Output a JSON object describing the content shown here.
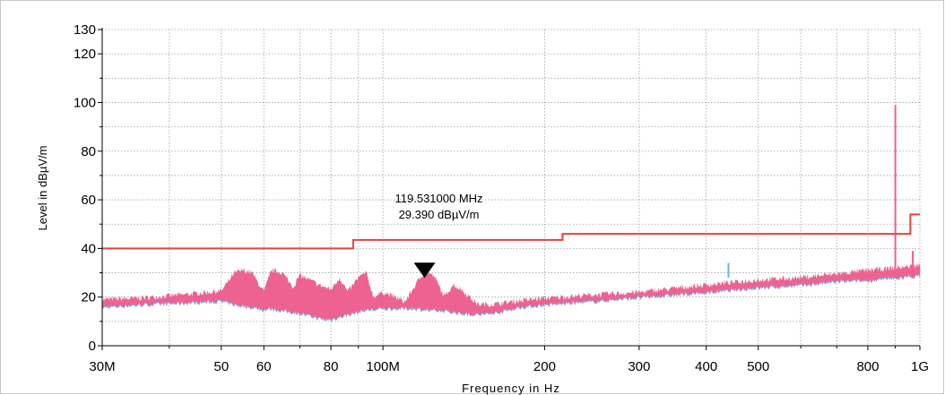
{
  "chart_data": {
    "type": "line",
    "x_scale": "log",
    "xlim": [
      30000000,
      1000000000
    ],
    "ylim": [
      0,
      130
    ],
    "grid": true,
    "xlabel": "Frequency in Hz",
    "ylabel": "Level in dBµV/m",
    "x_ticks": [
      {
        "value": 30000000,
        "label": "30M"
      },
      {
        "value": 50000000,
        "label": "50"
      },
      {
        "value": 60000000,
        "label": "60"
      },
      {
        "value": 80000000,
        "label": "80"
      },
      {
        "value": 100000000,
        "label": "100M"
      },
      {
        "value": 200000000,
        "label": "200"
      },
      {
        "value": 300000000,
        "label": "300"
      },
      {
        "value": 400000000,
        "label": "400"
      },
      {
        "value": 500000000,
        "label": "500"
      },
      {
        "value": 800000000,
        "label": "800"
      },
      {
        "value": 1000000000,
        "label": "1G"
      }
    ],
    "y_ticks": [
      {
        "value": 0,
        "label": "0"
      },
      {
        "value": 20,
        "label": "20"
      },
      {
        "value": 40,
        "label": "40"
      },
      {
        "value": 60,
        "label": "60"
      },
      {
        "value": 80,
        "label": "80"
      },
      {
        "value": 100,
        "label": "100"
      },
      {
        "value": 120,
        "label": "120"
      },
      {
        "value": 130,
        "label": "130"
      }
    ],
    "x_minor_ticks": [
      40000000,
      70000000,
      90000000,
      600000000,
      700000000,
      900000000
    ],
    "y_minor_ticks": [
      10,
      30,
      50,
      70,
      90,
      110
    ],
    "series": [
      {
        "name": "",
        "style": "step-limit",
        "color": "#e8423a",
        "x": [
          30000000,
          88000000,
          88000000,
          216000000,
          216000000,
          960000000,
          960000000,
          1000000000
        ],
        "y": [
          40,
          40,
          43.5,
          43.5,
          46,
          46,
          54,
          54
        ]
      },
      {
        "name": "",
        "style": "spectrum-envelope",
        "color": "#f0608e",
        "secondary_color": "#69b4e8",
        "x": [
          30000000,
          35000000,
          40000000,
          45000000,
          50000000,
          53000000,
          55000000,
          57000000,
          60000000,
          62000000,
          65000000,
          68000000,
          70000000,
          73000000,
          76000000,
          78000000,
          80000000,
          83000000,
          86000000,
          90000000,
          93000000,
          96000000,
          100000000,
          105000000,
          110000000,
          115000000,
          120000000,
          125000000,
          130000000,
          135000000,
          140000000,
          150000000,
          160000000,
          180000000,
          200000000,
          250000000,
          300000000,
          400000000,
          500000000,
          600000000,
          700000000,
          800000000,
          900000000,
          1000000000
        ],
        "y_low": [
          16,
          17,
          17.5,
          18,
          18.5,
          17,
          16.5,
          16,
          15,
          15.5,
          14.5,
          14,
          13.5,
          12.5,
          11.5,
          11,
          11,
          12,
          13,
          14,
          15,
          15,
          15.5,
          15.5,
          15.5,
          15.5,
          15,
          14.5,
          14.5,
          14,
          13.5,
          13,
          13.5,
          16,
          17,
          18.5,
          20,
          22,
          24,
          25,
          26.5,
          27,
          28,
          29
        ],
        "y_high": [
          19,
          19.5,
          20.5,
          21.5,
          22.5,
          30,
          31,
          30,
          22,
          31,
          30,
          24,
          29,
          27,
          25,
          24,
          23,
          28,
          22,
          28,
          30,
          20,
          22,
          20,
          18,
          25,
          31,
          28,
          20,
          25,
          23,
          17,
          17,
          18.5,
          19.5,
          21,
          22,
          25,
          27,
          28,
          29.5,
          31,
          32,
          33
        ]
      }
    ],
    "spikes": [
      {
        "x": 440000000,
        "y": 34,
        "color": "#69b4e8"
      },
      {
        "x": 900000000,
        "y": 99,
        "color": "#f0608e"
      },
      {
        "x": 970000000,
        "y": 39,
        "color": "#f0608e"
      }
    ],
    "marker": {
      "x": 119531000,
      "y": 29.39,
      "line1": "119.531000 MHz",
      "line2": "29.390 dBµV/m"
    }
  }
}
